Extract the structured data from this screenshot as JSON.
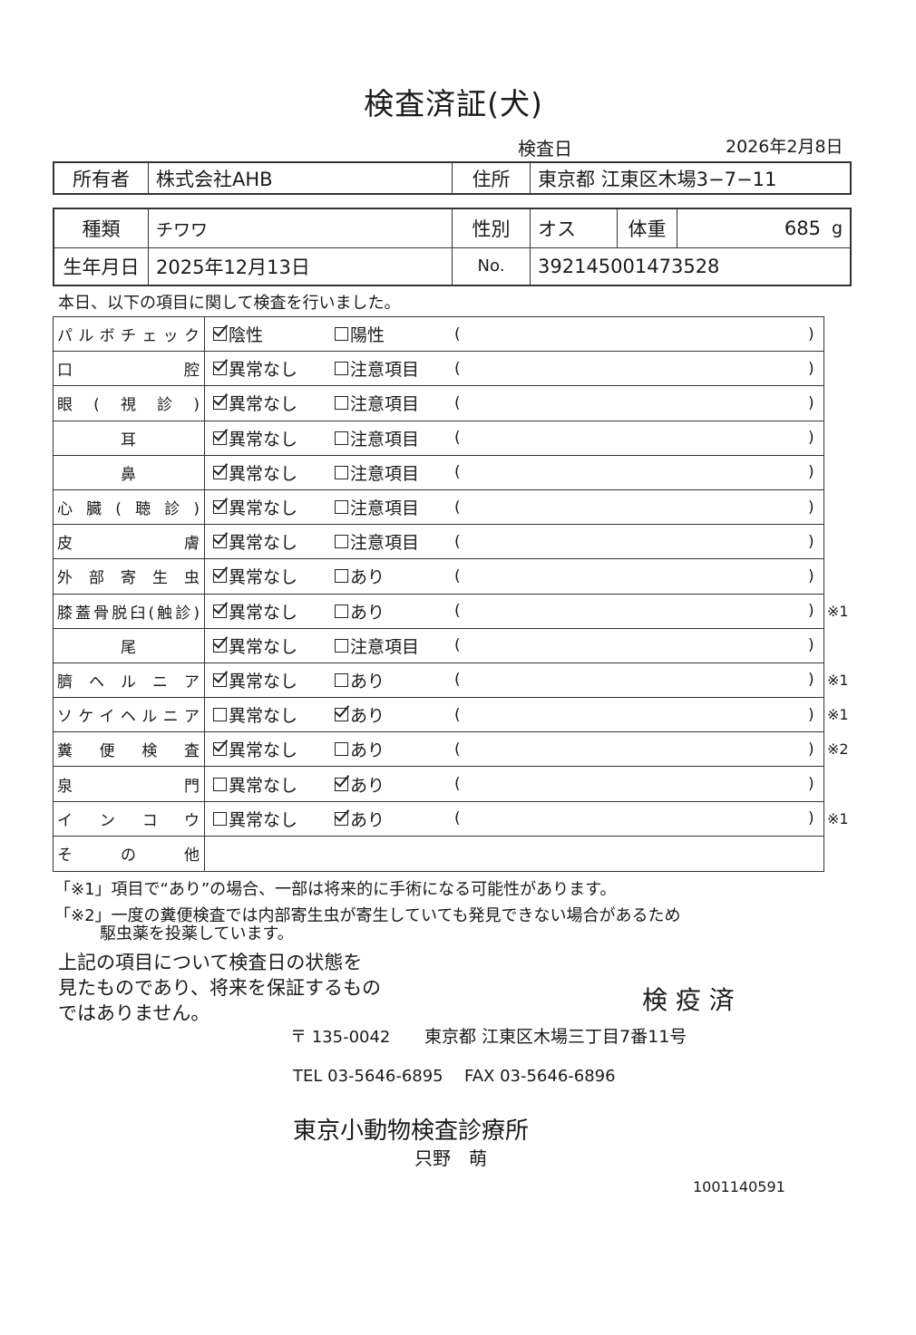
{
  "title": "検査済証(犬)",
  "exam_date_label": "検査日",
  "exam_date": "2026年2月8日",
  "owner": {
    "label": "所有者",
    "value": "株式会社AHB",
    "address_label": "住所",
    "address": "東京都 江東区木場3−7−11"
  },
  "pet": {
    "breed_label": "種類",
    "breed": "チワワ",
    "sex_label": "性別",
    "sex": "オス",
    "weight_label": "体重",
    "weight": "685",
    "weight_unit": "g",
    "birth_label": "生年月日",
    "birth": "2025年12月13日",
    "no_label": "No.",
    "no": "392145001473528"
  },
  "intro": "本日、以下の項目に関して検査を行いました。",
  "paren_open": "(",
  "paren_close": ")",
  "checks": [
    {
      "label": "パルボチェック",
      "opt1": "陰性",
      "opt2": "陽性",
      "checked": 1,
      "note": ""
    },
    {
      "label": "口腔",
      "opt1": "異常なし",
      "opt2": "注意項目",
      "checked": 1,
      "note": ""
    },
    {
      "label": "眼(視診)",
      "opt1": "異常なし",
      "opt2": "注意項目",
      "checked": 1,
      "note": ""
    },
    {
      "label": "耳",
      "opt1": "異常なし",
      "opt2": "注意項目",
      "checked": 1,
      "note": ""
    },
    {
      "label": "鼻",
      "opt1": "異常なし",
      "opt2": "注意項目",
      "checked": 1,
      "note": ""
    },
    {
      "label": "心臓(聴診)",
      "opt1": "異常なし",
      "opt2": "注意項目",
      "checked": 1,
      "note": ""
    },
    {
      "label": "皮膚",
      "opt1": "異常なし",
      "opt2": "注意項目",
      "checked": 1,
      "note": ""
    },
    {
      "label": "外部寄生虫",
      "opt1": "異常なし",
      "opt2": "あり",
      "checked": 1,
      "note": ""
    },
    {
      "label": "膝蓋骨脱臼(触診)",
      "opt1": "異常なし",
      "opt2": "あり",
      "checked": 1,
      "note": "※1"
    },
    {
      "label": "尾",
      "opt1": "異常なし",
      "opt2": "注意項目",
      "checked": 1,
      "note": ""
    },
    {
      "label": "臍ヘルニア",
      "opt1": "異常なし",
      "opt2": "あり",
      "checked": 1,
      "note": "※1"
    },
    {
      "label": "ソケイヘルニア",
      "opt1": "異常なし",
      "opt2": "あり",
      "checked": 2,
      "note": "※1"
    },
    {
      "label": "糞便検査",
      "opt1": "異常なし",
      "opt2": "あり",
      "checked": 1,
      "note": "※2"
    },
    {
      "label": "泉門",
      "opt1": "異常なし",
      "opt2": "あり",
      "checked": 2,
      "note": ""
    },
    {
      "label": "インコウ",
      "opt1": "異常なし",
      "opt2": "あり",
      "checked": 2,
      "note": "※1"
    },
    {
      "label": "その他",
      "opt1": "",
      "opt2": "",
      "checked": 0,
      "note": ""
    }
  ],
  "footnotes": [
    "「※1」項目で“あり”の場合、一部は将来的に手術になる可能性があります。",
    "「※2」一度の糞便検査では内部寄生虫が寄生していても発見できない場合があるため",
    "駆虫薬を投薬しています。"
  ],
  "disclaimer": [
    "上記の項目について検査日の状態を",
    "見たものであり、将来を保証するもの",
    "ではありません。"
  ],
  "quarantine": "検 疫 済",
  "clinic": {
    "postal": "〒 135-0042",
    "address": "東京都 江東区木場三丁目7番11号",
    "tel": "TEL 03-5646-6895",
    "fax": "FAX 03-5646-6896",
    "name": "東京小動物検査診療所",
    "vet": "只野　萌"
  },
  "doc_number": "1001140591"
}
